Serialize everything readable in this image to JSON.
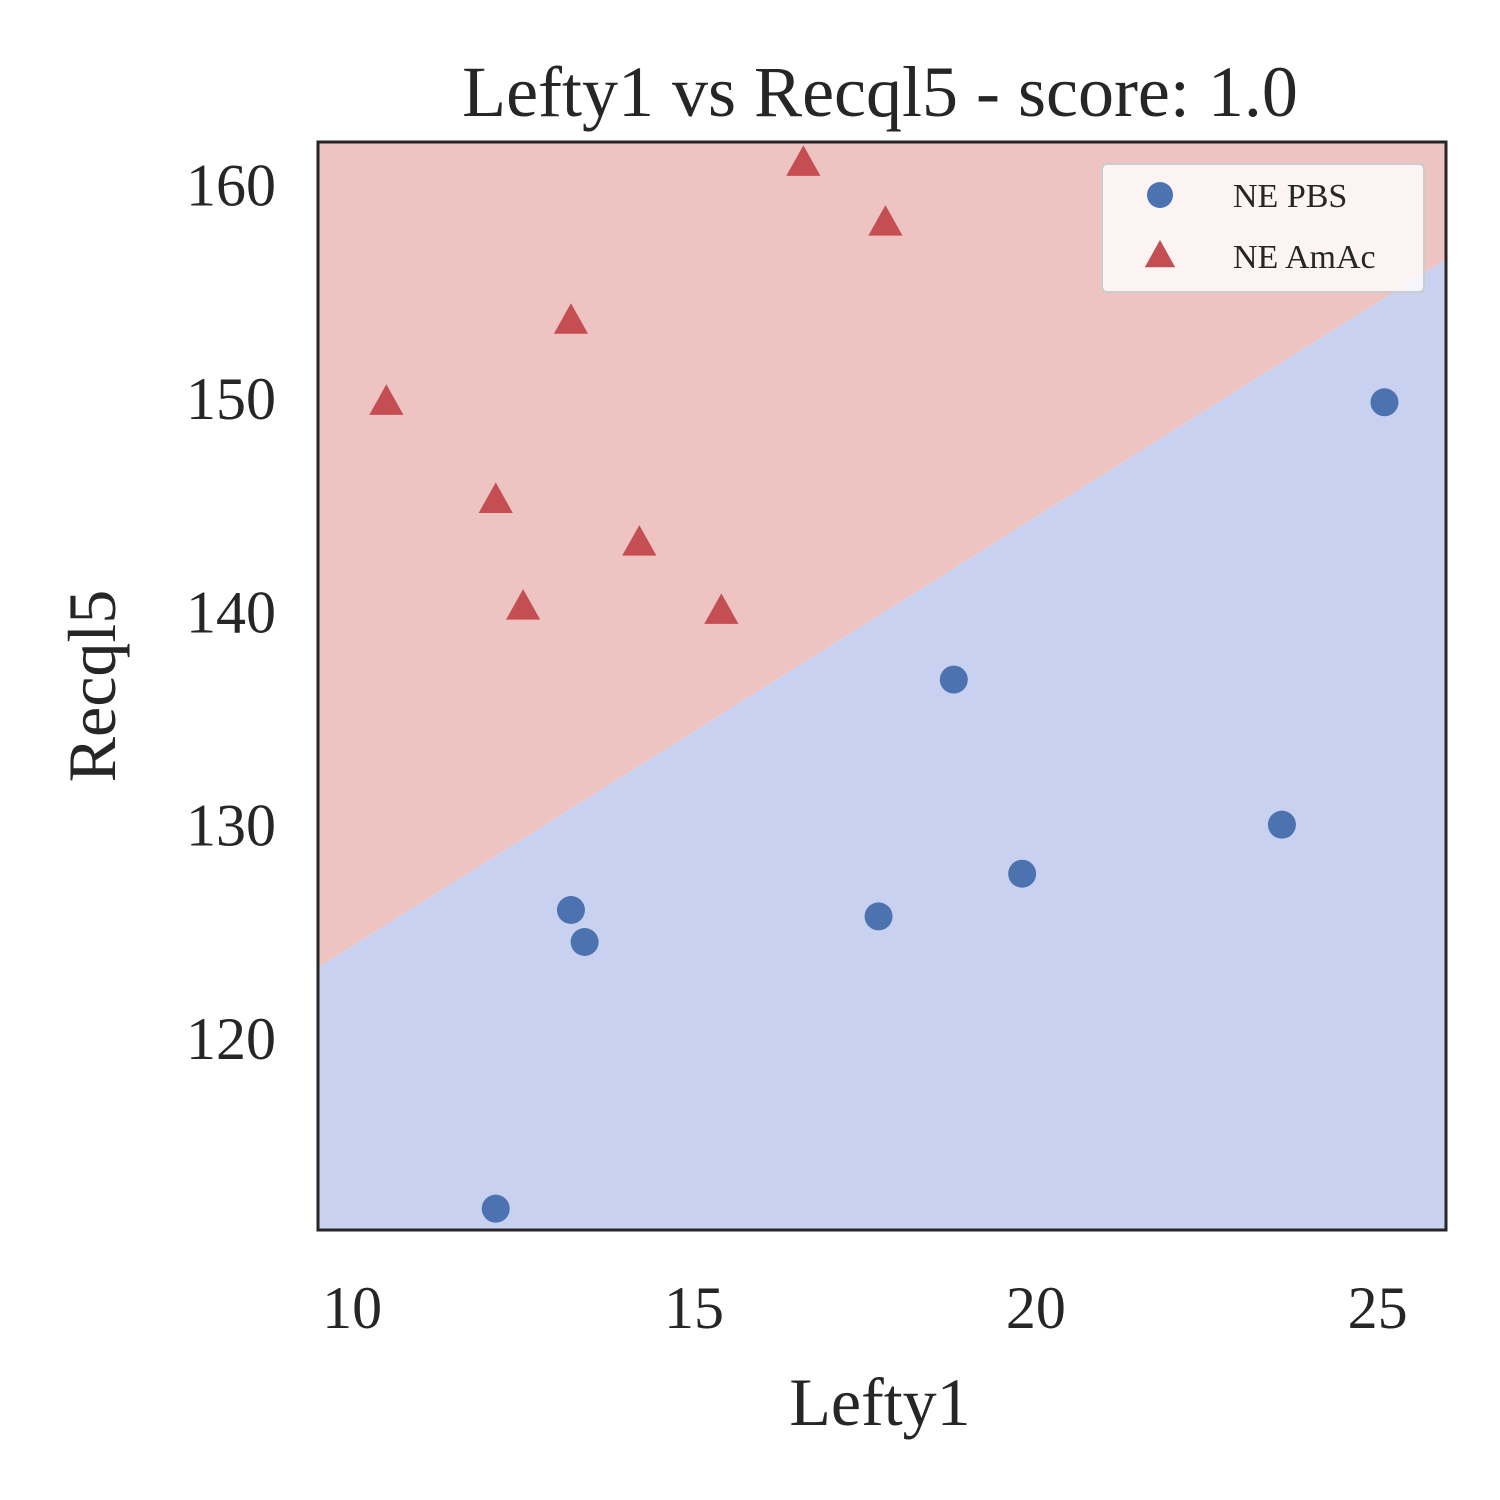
{
  "chart_data": {
    "type": "scatter",
    "title": "Lefty1 vs Recql5 - score: 1.0",
    "xlabel": "Lefty1",
    "ylabel": "Recql5",
    "xlim": [
      9.5,
      26.0
    ],
    "ylim": [
      111.0,
      162.0
    ],
    "xticks": [
      10,
      15,
      20,
      25
    ],
    "yticks": [
      120,
      130,
      140,
      150,
      160
    ],
    "grid": false,
    "legend_position": "top-right",
    "decision_boundary": {
      "points": [
        [
          9.5,
          123.3
        ],
        [
          26.0,
          156.5
        ]
      ],
      "region_above": {
        "label": "NE AmAc",
        "color": "#eec4c3"
      },
      "region_below": {
        "label": "NE PBS",
        "color": "#c9d1f1"
      }
    },
    "series": [
      {
        "name": "NE PBS",
        "marker": "circle",
        "color": "#4c72b0",
        "points": [
          [
            12.1,
            112.0
          ],
          [
            13.2,
            126.0
          ],
          [
            13.4,
            124.5
          ],
          [
            17.7,
            125.7
          ],
          [
            18.8,
            136.8
          ],
          [
            19.8,
            127.7
          ],
          [
            23.6,
            130.0
          ],
          [
            25.1,
            149.8
          ]
        ]
      },
      {
        "name": "NE AmAc",
        "marker": "triangle",
        "color": "#c44e52",
        "points": [
          [
            10.5,
            149.8
          ],
          [
            12.1,
            145.2
          ],
          [
            12.5,
            140.2
          ],
          [
            13.2,
            153.6
          ],
          [
            14.2,
            143.2
          ],
          [
            15.4,
            140.0
          ],
          [
            16.6,
            161.0
          ],
          [
            17.8,
            158.2
          ]
        ]
      }
    ]
  }
}
